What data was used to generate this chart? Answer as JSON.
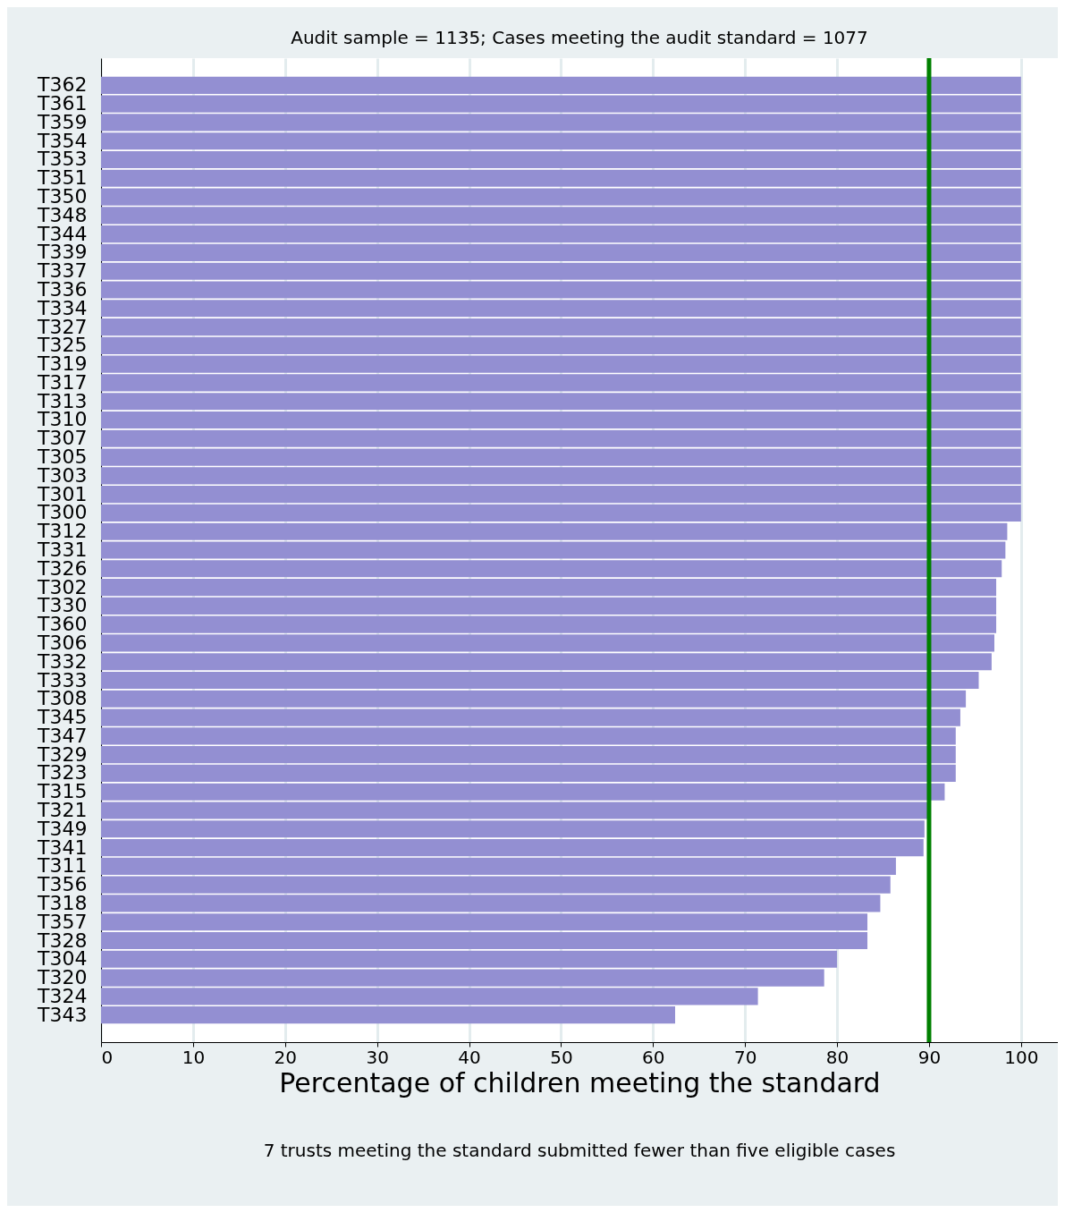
{
  "chart_data": {
    "type": "bar",
    "orientation": "horizontal",
    "title": "Audit sample = 1135; Cases meeting the audit standard = 1077",
    "xlabel": "Percentage of children meeting the standard",
    "annotations": [
      "7 trusts meeting the standard submitted fewer than five eligible cases"
    ],
    "categories": [
      "T362",
      "T361",
      "T359",
      "T354",
      "T353",
      "T351",
      "T350",
      "T348",
      "T344",
      "T339",
      "T337",
      "T336",
      "T334",
      "T327",
      "T325",
      "T319",
      "T317",
      "T313",
      "T310",
      "T307",
      "T305",
      "T303",
      "T301",
      "T300",
      "T312",
      "T331",
      "T326",
      "T302",
      "T330",
      "T360",
      "T306",
      "T332",
      "T333",
      "T308",
      "T345",
      "T347",
      "T329",
      "T323",
      "T315",
      "T321",
      "T349",
      "T341",
      "T311",
      "T356",
      "T318",
      "T357",
      "T328",
      "T304",
      "T320",
      "T324",
      "T343"
    ],
    "values": [
      100,
      100,
      100,
      100,
      100,
      100,
      100,
      100,
      100,
      100,
      100,
      100,
      100,
      100,
      100,
      100,
      100,
      100,
      100,
      100,
      100,
      100,
      100,
      100,
      98.5,
      98.3,
      97.9,
      97.3,
      97.3,
      97.3,
      97.1,
      96.8,
      95.4,
      94.0,
      93.4,
      92.9,
      92.9,
      92.9,
      91.7,
      90.1,
      89.5,
      89.4,
      86.4,
      85.8,
      84.7,
      83.3,
      83.3,
      80.0,
      78.6,
      71.4,
      62.4
    ],
    "color": "#938fd2",
    "xlim": [
      0,
      104
    ],
    "xticks": [
      0,
      10,
      20,
      30,
      40,
      50,
      60,
      70,
      80,
      90,
      100
    ],
    "grid": "x",
    "ref_lines": [
      {
        "axis": "x",
        "value": 90,
        "color": "#008000"
      }
    ]
  }
}
